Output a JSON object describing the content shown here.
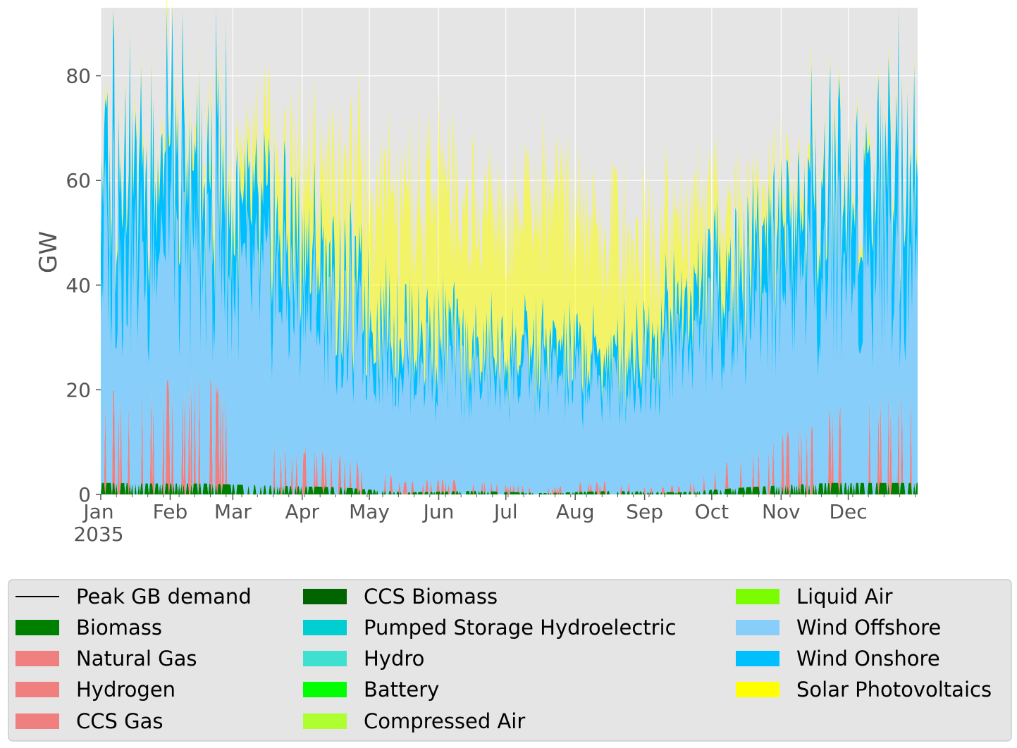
{
  "chart_data": {
    "type": "area",
    "title": "",
    "ylabel": "GW",
    "xlabel": "",
    "ylim": [
      0,
      93
    ],
    "yticks": [
      0,
      20,
      40,
      60,
      80
    ],
    "x_months": [
      "Jan",
      "Feb",
      "Mar",
      "Apr",
      "May",
      "Jun",
      "Jul",
      "Aug",
      "Sep",
      "Oct",
      "Nov",
      "Dec"
    ],
    "x_year_label": "2035",
    "grid": true,
    "legend_position": "bottom",
    "legend_entries": [
      {
        "name": "Peak GB demand",
        "color": "#000000",
        "kind": "line"
      },
      {
        "name": "Biomass",
        "color": "#008000",
        "kind": "patch"
      },
      {
        "name": "Natural Gas",
        "color": "#f08080",
        "kind": "patch"
      },
      {
        "name": "Hydrogen",
        "color": "#f08080",
        "kind": "patch"
      },
      {
        "name": "CCS Gas",
        "color": "#f08080",
        "kind": "patch"
      },
      {
        "name": "CCS Biomass",
        "color": "#006400",
        "kind": "patch"
      },
      {
        "name": "Pumped Storage Hydroelectric",
        "color": "#00ced1",
        "kind": "patch"
      },
      {
        "name": "Hydro",
        "color": "#40e0d0",
        "kind": "patch"
      },
      {
        "name": "Battery",
        "color": "#00ff00",
        "kind": "patch"
      },
      {
        "name": "Compressed Air",
        "color": "#adff2f",
        "kind": "patch"
      },
      {
        "name": "Liquid Air",
        "color": "#7cfc00",
        "kind": "patch"
      },
      {
        "name": "Wind Offshore",
        "color": "#87cefa",
        "kind": "patch"
      },
      {
        "name": "Wind Onshore",
        "color": "#00bfff",
        "kind": "patch"
      },
      {
        "name": "Solar Photovoltaics",
        "color": "#ffff00",
        "kind": "patch"
      }
    ],
    "series_monthly_approx_GW": [
      {
        "name": "Biomass",
        "values": [
          1.5,
          1.5,
          1.2,
          1.0,
          0.3,
          0.5,
          0.2,
          0.5,
          0.3,
          1.0,
          1.5,
          1.8
        ]
      },
      {
        "name": "Natural Gas",
        "values": [
          8,
          10,
          4,
          3,
          1,
          1,
          0.5,
          1,
          0.5,
          3,
          6,
          8
        ]
      },
      {
        "name": "Wind Offshore",
        "values": [
          42,
          40,
          38,
          30,
          25,
          22,
          22,
          20,
          28,
          35,
          40,
          42
        ]
      },
      {
        "name": "Wind Onshore",
        "values": [
          18,
          15,
          12,
          8,
          6,
          5,
          5,
          5,
          8,
          10,
          14,
          18
        ]
      },
      {
        "name": "Solar Photovoltaics",
        "values": [
          2,
          4,
          10,
          20,
          26,
          28,
          27,
          24,
          16,
          8,
          3,
          2
        ]
      }
    ]
  }
}
